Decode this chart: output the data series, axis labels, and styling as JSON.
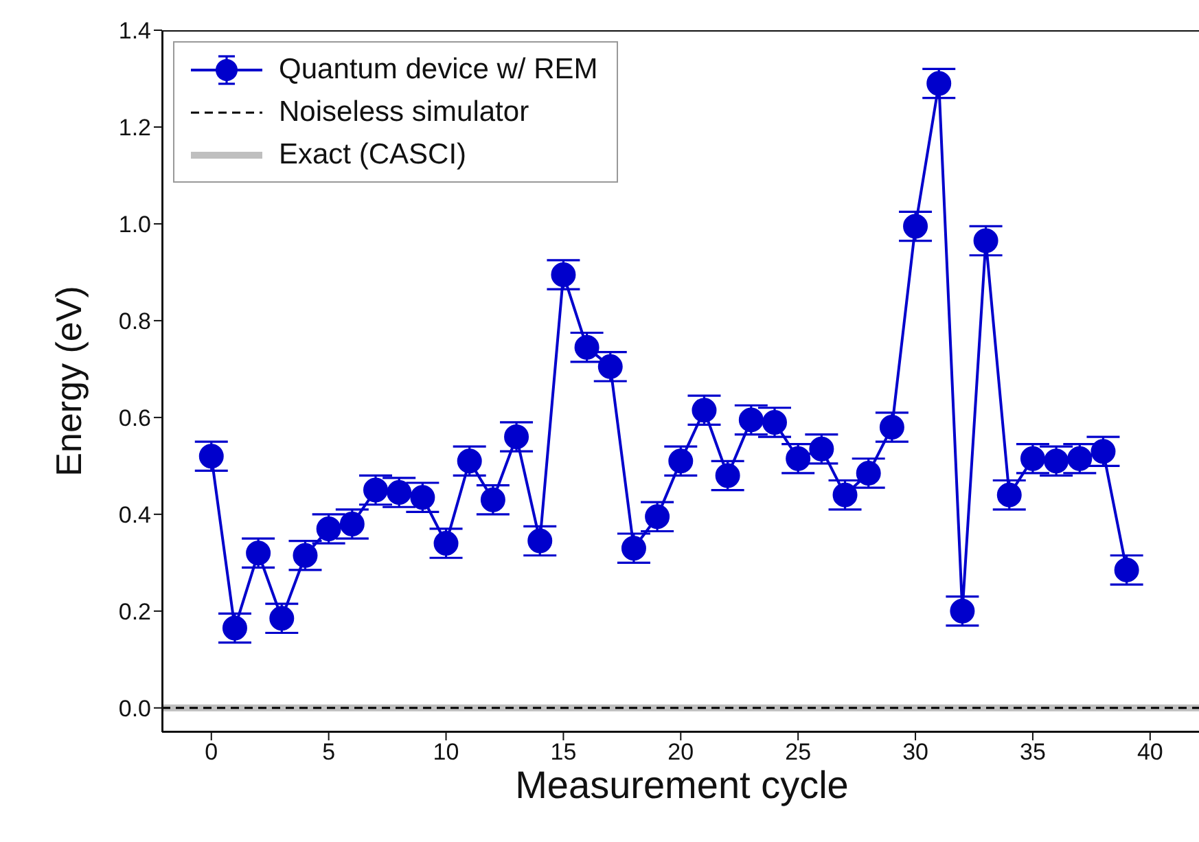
{
  "chart_data": {
    "type": "line",
    "xlabel": "Measurement cycle",
    "ylabel": "Energy (eV)",
    "xlim": [
      -2.1,
      42.2
    ],
    "xticks": [
      0,
      5,
      10,
      15,
      20,
      25,
      30,
      35,
      40
    ],
    "ylim": [
      -0.05,
      1.4
    ],
    "yticks": [
      {
        "value": 0,
        "label": "0.0"
      },
      {
        "value": 0.2,
        "label": "0.2"
      },
      {
        "value": 0.4,
        "label": "0.4"
      },
      {
        "value": 0.6,
        "label": "0.6"
      },
      {
        "value": 0.8,
        "label": "0.8"
      },
      {
        "value": 1.0,
        "label": "1.0"
      },
      {
        "value": 1.2,
        "label": "1.2"
      },
      {
        "value": 1.4,
        "label": "1.4"
      }
    ],
    "grid": false,
    "legend": "top left",
    "series": [
      {
        "name": "Quantum device w/ REM",
        "color": "#0000cc",
        "marker": "circle",
        "line_style": "solid",
        "x": [
          0,
          1,
          2,
          3,
          4,
          5,
          6,
          7,
          8,
          9,
          10,
          11,
          12,
          13,
          14,
          15,
          16,
          17,
          18,
          19,
          20,
          21,
          22,
          23,
          24,
          25,
          26,
          27,
          28,
          29,
          30,
          31,
          32,
          33,
          34,
          35,
          36,
          37,
          38,
          39
        ],
        "values": [
          0.52,
          0.165,
          0.32,
          0.185,
          0.315,
          0.37,
          0.38,
          0.45,
          0.445,
          0.435,
          0.34,
          0.51,
          0.43,
          0.56,
          0.345,
          0.895,
          0.745,
          0.705,
          0.33,
          0.395,
          0.51,
          0.615,
          0.48,
          0.595,
          0.59,
          0.515,
          0.535,
          0.44,
          0.485,
          0.58,
          0.995,
          1.29,
          0.2,
          0.965,
          0.44,
          0.515,
          0.51,
          0.515,
          0.53,
          0.285
        ],
        "errors": [
          0.03,
          0.03,
          0.03,
          0.03,
          0.03,
          0.03,
          0.03,
          0.03,
          0.03,
          0.03,
          0.03,
          0.03,
          0.03,
          0.03,
          0.03,
          0.03,
          0.03,
          0.03,
          0.03,
          0.03,
          0.03,
          0.03,
          0.03,
          0.03,
          0.03,
          0.03,
          0.03,
          0.03,
          0.03,
          0.03,
          0.03,
          0.03,
          0.03,
          0.03,
          0.03,
          0.03,
          0.03,
          0.03,
          0.03,
          0.03
        ]
      },
      {
        "name": "Noiseless simulator",
        "color": "#000000",
        "marker": "none",
        "line_style": "dashed",
        "x": [
          -2.1,
          42.2
        ],
        "values": [
          0,
          0
        ]
      },
      {
        "name": "Exact (CASCI)",
        "color": "#bfbfbf",
        "marker": "none",
        "line_style": "solid",
        "x": [
          -2.1,
          42.2
        ],
        "values": [
          0,
          0
        ]
      }
    ]
  }
}
